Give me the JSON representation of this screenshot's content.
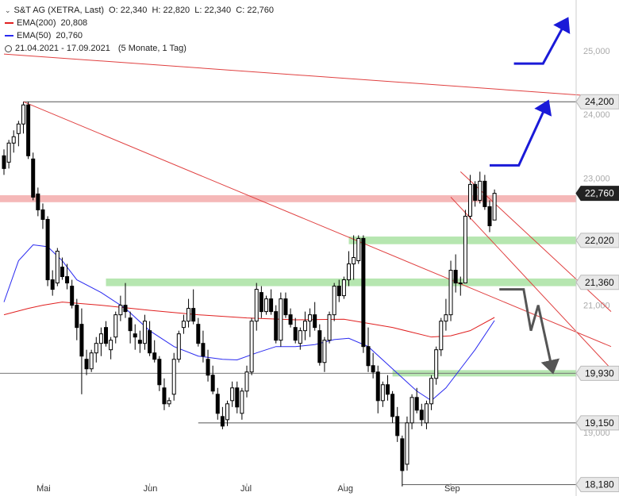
{
  "header": {
    "title": "S&T AG (XETRA, Last)",
    "ohlc": "O: 22,340  H: 22,820  L: 22,340  C: 22,760",
    "ema200_label": "EMA(200)",
    "ema200_value": "20,808",
    "ema50_label": "EMA(50)",
    "ema50_value": "20,760",
    "period": "21.04.2021 - 17.09.2021",
    "period_info": "(5 Monate, 1 Tag)"
  },
  "colors": {
    "up": "#ffffff",
    "down": "#000000",
    "ema200": "#e02020",
    "ema50": "#2a2af0",
    "trendline": "#e04040",
    "support_zone": "#b6e6b0",
    "resistance_zone": "#f5b8b8",
    "scenario_up": "#1a1ad8",
    "scenario_down": "#555555"
  },
  "chart_data": {
    "type": "candlestick",
    "ylim": [
      18000,
      25800
    ],
    "y_ticks": [
      19000,
      20000,
      21000,
      22000,
      23000,
      24000,
      25000
    ],
    "y_tick_labels": [
      "19,000",
      "20,000",
      "21,000",
      "22,000",
      "23,000",
      "24,000",
      "25,000"
    ],
    "x_month_labels": [
      "Mai",
      "Jun",
      "Jul",
      "Aug",
      "Sep"
    ],
    "x_month_positions": [
      8,
      30,
      50,
      70,
      92
    ],
    "candles": [
      [
        23350,
        23450,
        23050,
        23150
      ],
      [
        23250,
        23600,
        23150,
        23550
      ],
      [
        23550,
        23750,
        23400,
        23650
      ],
      [
        23700,
        23900,
        23500,
        23850
      ],
      [
        23850,
        24200,
        23700,
        24150
      ],
      [
        24150,
        24200,
        23300,
        23350
      ],
      [
        23300,
        23400,
        22650,
        22700
      ],
      [
        22750,
        22850,
        22400,
        22500
      ],
      [
        22500,
        22600,
        22200,
        22350
      ],
      [
        22350,
        22400,
        21300,
        21400
      ],
      [
        21400,
        21550,
        21150,
        21250
      ],
      [
        21350,
        21900,
        21300,
        21850
      ],
      [
        21600,
        21750,
        21400,
        21450
      ],
      [
        21450,
        21650,
        21250,
        21350
      ],
      [
        21300,
        21400,
        20950,
        21000
      ],
      [
        21000,
        21100,
        20450,
        20650
      ],
      [
        20700,
        20950,
        19600,
        20200
      ],
      [
        20150,
        20300,
        19900,
        20000
      ],
      [
        20000,
        20300,
        19950,
        20250
      ],
      [
        20250,
        20500,
        20100,
        20400
      ],
      [
        20400,
        20650,
        20200,
        20550
      ],
      [
        20650,
        20750,
        20350,
        20400
      ],
      [
        20300,
        20500,
        20150,
        20450
      ],
      [
        20500,
        20900,
        20400,
        20850
      ],
      [
        20850,
        21150,
        20750,
        21000
      ],
      [
        21000,
        21350,
        20800,
        20900
      ],
      [
        20800,
        20900,
        20400,
        20600
      ],
      [
        20550,
        20700,
        20300,
        20500
      ],
      [
        20450,
        20600,
        20250,
        20400
      ],
      [
        20400,
        20850,
        20300,
        20750
      ],
      [
        20600,
        20750,
        20200,
        20250
      ],
      [
        20250,
        20450,
        20100,
        20150
      ],
      [
        20150,
        20200,
        19650,
        19750
      ],
      [
        19700,
        19850,
        19350,
        19450
      ],
      [
        19450,
        19550,
        19400,
        19500
      ],
      [
        19600,
        20250,
        19500,
        20150
      ],
      [
        20150,
        20600,
        20100,
        20550
      ],
      [
        20650,
        20850,
        20550,
        20750
      ],
      [
        20750,
        21100,
        20650,
        20950
      ],
      [
        20950,
        21250,
        20700,
        20750
      ],
      [
        20700,
        20800,
        20350,
        20400
      ],
      [
        20400,
        20600,
        20100,
        20200
      ],
      [
        20150,
        20300,
        19800,
        19900
      ],
      [
        19900,
        20050,
        19600,
        19650
      ],
      [
        19600,
        19700,
        19200,
        19300
      ],
      [
        19250,
        19400,
        19050,
        19100
      ],
      [
        19200,
        19500,
        19100,
        19450
      ],
      [
        19500,
        19800,
        19400,
        19700
      ],
      [
        19700,
        19800,
        19300,
        19400
      ],
      [
        19300,
        19700,
        19200,
        19650
      ],
      [
        19650,
        20050,
        19550,
        19950
      ],
      [
        19950,
        20800,
        19900,
        20750
      ],
      [
        20750,
        21350,
        20600,
        21250
      ],
      [
        21200,
        21300,
        20800,
        20900
      ],
      [
        20900,
        21150,
        20850,
        21100
      ],
      [
        21100,
        21250,
        20850,
        20900
      ],
      [
        20900,
        21000,
        20400,
        20450
      ],
      [
        20450,
        21200,
        20350,
        21100
      ],
      [
        21100,
        21200,
        20800,
        20850
      ],
      [
        20850,
        20950,
        20650,
        20700
      ],
      [
        20650,
        20800,
        20400,
        20450
      ],
      [
        20400,
        20650,
        20300,
        20600
      ],
      [
        20600,
        20900,
        20450,
        20750
      ],
      [
        20750,
        20950,
        20500,
        20850
      ],
      [
        20850,
        21050,
        20600,
        20650
      ],
      [
        20600,
        20700,
        20050,
        20100
      ],
      [
        20100,
        20500,
        19950,
        20450
      ],
      [
        20450,
        20900,
        20400,
        20850
      ],
      [
        20850,
        21350,
        20750,
        21300
      ],
      [
        21300,
        21400,
        21050,
        21150
      ],
      [
        21150,
        21450,
        21100,
        21400
      ],
      [
        21400,
        21850,
        21300,
        21650
      ],
      [
        21650,
        22100,
        21400,
        21750
      ],
      [
        21700,
        22100,
        21650,
        22050
      ],
      [
        22050,
        22100,
        20250,
        20350
      ],
      [
        20350,
        20650,
        19950,
        20050
      ],
      [
        20050,
        20250,
        19850,
        19950
      ],
      [
        19950,
        20050,
        19300,
        19500
      ],
      [
        19500,
        19800,
        19400,
        19750
      ],
      [
        19750,
        19900,
        19500,
        19600
      ],
      [
        19600,
        19650,
        19150,
        19250
      ],
      [
        19250,
        19400,
        18850,
        18950
      ],
      [
        18900,
        18950,
        18150,
        18400
      ],
      [
        18500,
        19250,
        18400,
        19150
      ],
      [
        19150,
        19600,
        19050,
        19550
      ],
      [
        19550,
        19700,
        19300,
        19350
      ],
      [
        19350,
        19450,
        19100,
        19200
      ],
      [
        19150,
        19500,
        19050,
        19450
      ],
      [
        19450,
        19900,
        19350,
        19850
      ],
      [
        19850,
        20350,
        19750,
        20300
      ],
      [
        20300,
        20800,
        20200,
        20750
      ],
      [
        20750,
        21100,
        20600,
        20850
      ],
      [
        20850,
        21700,
        20750,
        21550
      ],
      [
        21550,
        21800,
        21200,
        21350
      ],
      [
        21350,
        21450,
        21150,
        21350
      ],
      [
        21350,
        22500,
        21350,
        22400
      ],
      [
        22400,
        23050,
        22350,
        22900
      ],
      [
        22900,
        22950,
        22550,
        22650
      ],
      [
        22650,
        23100,
        22600,
        22950
      ],
      [
        22950,
        23050,
        22500,
        22550
      ],
      [
        22550,
        22650,
        22150,
        22250
      ],
      [
        22340,
        22820,
        22340,
        22760
      ]
    ],
    "ema200": [
      [
        0,
        20850
      ],
      [
        5,
        20950
      ],
      [
        8,
        21000
      ],
      [
        12,
        21050
      ],
      [
        20,
        21000
      ],
      [
        30,
        20920
      ],
      [
        40,
        20850
      ],
      [
        50,
        20800
      ],
      [
        60,
        20770
      ],
      [
        70,
        20780
      ],
      [
        80,
        20650
      ],
      [
        88,
        20500
      ],
      [
        92,
        20520
      ],
      [
        96,
        20600
      ],
      [
        101,
        20808
      ]
    ],
    "ema50": [
      [
        0,
        21050
      ],
      [
        3,
        21700
      ],
      [
        6,
        21950
      ],
      [
        9,
        21920
      ],
      [
        12,
        21700
      ],
      [
        15,
        21400
      ],
      [
        20,
        21200
      ],
      [
        25,
        20950
      ],
      [
        30,
        20600
      ],
      [
        35,
        20350
      ],
      [
        40,
        20200
      ],
      [
        45,
        20150
      ],
      [
        48,
        20140
      ],
      [
        52,
        20250
      ],
      [
        56,
        20350
      ],
      [
        60,
        20350
      ],
      [
        64,
        20380
      ],
      [
        68,
        20460
      ],
      [
        71,
        20480
      ],
      [
        75,
        20350
      ],
      [
        80,
        20000
      ],
      [
        85,
        19650
      ],
      [
        88,
        19500
      ],
      [
        91,
        19700
      ],
      [
        94,
        20000
      ],
      [
        97,
        20300
      ],
      [
        101,
        20760
      ]
    ],
    "trendlines": [
      [
        [
          0,
          24950
        ],
        [
          125,
          24270
        ]
      ],
      [
        [
          4,
          24200
        ],
        [
          125,
          20350
        ]
      ],
      [
        [
          94,
          23100
        ],
        [
          125,
          20900
        ]
      ],
      [
        [
          92,
          22700
        ],
        [
          125,
          20000
        ]
      ]
    ],
    "horizontal_lines": [
      {
        "y": 24200,
        "x_start": 4,
        "color": "#555555"
      },
      {
        "y": 19930,
        "x_start": -1,
        "color": "#777777"
      },
      {
        "y": 19150,
        "x_start": 40,
        "color": "#555555"
      },
      {
        "y": 18180,
        "x_start": 82,
        "color": "#555555"
      }
    ],
    "zones": [
      {
        "y_low": 22620,
        "y_high": 22730,
        "x_start": -1,
        "kind": "resistance"
      },
      {
        "y_low": 21960,
        "y_high": 22080,
        "x_start": 71,
        "kind": "support"
      },
      {
        "y_low": 21300,
        "y_high": 21420,
        "x_start": 21,
        "kind": "support"
      },
      {
        "y_low": 19880,
        "y_high": 19980,
        "x_start": 80,
        "kind": "support"
      }
    ],
    "price_labels": [
      {
        "value": 24200,
        "text": "24,200",
        "style": "gray"
      },
      {
        "value": 22760,
        "text": "22,760",
        "style": "dark"
      },
      {
        "value": 22020,
        "text": "22,020",
        "style": "gray"
      },
      {
        "value": 21360,
        "text": "21,360",
        "style": "gray"
      },
      {
        "value": 19930,
        "text": "19,930",
        "style": "gray"
      },
      {
        "value": 19150,
        "text": "19,150",
        "style": "gray"
      },
      {
        "value": 18180,
        "text": "18,180",
        "style": "gray"
      }
    ],
    "scenario_up_1": [
      [
        100,
        23200
      ],
      [
        106,
        23200
      ],
      [
        112,
        24200
      ]
    ],
    "scenario_up_2": [
      [
        105,
        24800
      ],
      [
        111,
        24800
      ],
      [
        116,
        25500
      ]
    ],
    "scenario_down": [
      [
        102,
        21250
      ],
      [
        107,
        21250
      ],
      [
        108.5,
        20600
      ],
      [
        110,
        21000
      ],
      [
        113,
        19950
      ]
    ]
  }
}
